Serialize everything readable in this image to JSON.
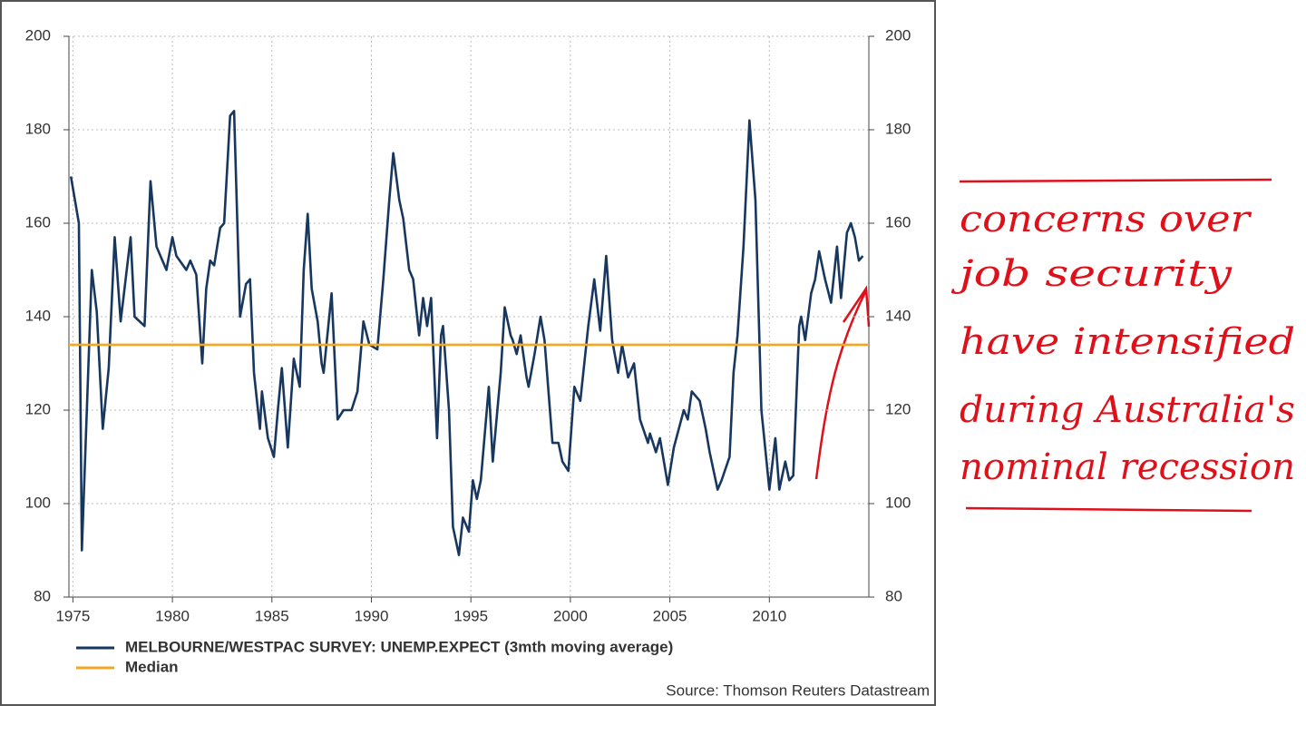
{
  "chart_data": {
    "type": "line",
    "x": [
      1974.9,
      1975.3,
      1975.45,
      1975.95,
      1976.2,
      1976.5,
      1976.8,
      1977.1,
      1977.4,
      1977.9,
      1978.1,
      1978.6,
      1978.9,
      1979.2,
      1979.7,
      1980.0,
      1980.2,
      1980.7,
      1980.9,
      1981.2,
      1981.5,
      1981.7,
      1981.9,
      1982.1,
      1982.4,
      1982.6,
      1982.9,
      1983.1,
      1983.4,
      1983.7,
      1983.9,
      1984.1,
      1984.4,
      1984.5,
      1984.8,
      1985.1,
      1985.3,
      1985.5,
      1985.8,
      1986.1,
      1986.4,
      1986.6,
      1986.8,
      1987.0,
      1987.3,
      1987.5,
      1987.6,
      1988.0,
      1988.3,
      1988.6,
      1989.0,
      1989.3,
      1989.6,
      1989.9,
      1990.3,
      1990.6,
      1990.9,
      1991.1,
      1991.4,
      1991.6,
      1991.9,
      1992.1,
      1992.4,
      1992.6,
      1992.8,
      1993.0,
      1993.3,
      1993.5,
      1993.6,
      1993.9,
      1994.1,
      1994.4,
      1994.6,
      1994.9,
      1995.1,
      1995.3,
      1995.5,
      1995.9,
      1996.1,
      1996.5,
      1996.7,
      1997.0,
      1997.1,
      1997.3,
      1997.5,
      1997.8,
      1997.9,
      1998.2,
      1998.5,
      1998.7,
      1999.1,
      1999.4,
      1999.6,
      1999.9,
      2000.2,
      2000.5,
      2000.9,
      2001.2,
      2001.5,
      2001.8,
      2002.1,
      2002.4,
      2002.6,
      2002.9,
      2003.2,
      2003.5,
      2003.9,
      2004.0,
      2004.3,
      2004.5,
      2004.9,
      2005.2,
      2005.7,
      2005.9,
      2006.1,
      2006.5,
      2006.8,
      2007.0,
      2007.4,
      2007.6,
      2008.0,
      2008.2,
      2008.4,
      2008.7,
      2009.0,
      2009.3,
      2009.6,
      2010.0,
      2010.3,
      2010.5,
      2010.8,
      2011.0,
      2011.2,
      2011.5,
      2011.6,
      2011.8,
      2012.1,
      2012.3,
      2012.5,
      2012.8,
      2013.1,
      2013.4,
      2013.6,
      2013.9,
      2014.1,
      2014.3,
      2014.5,
      2014.7
    ],
    "series": [
      {
        "name": "MELBOURNE/WESTPAC SURVEY: UNEMP.EXPECT (3mth moving average)",
        "color": "#17375e",
        "values": [
          170,
          160,
          90,
          150,
          141,
          116,
          129,
          157,
          139,
          157,
          140,
          138,
          169,
          155,
          150,
          157,
          153,
          150,
          152,
          149,
          130,
          146,
          152,
          151,
          159,
          160,
          183,
          184,
          140,
          147,
          148,
          128,
          116,
          124,
          114,
          110,
          120,
          129,
          112,
          131,
          125,
          150,
          162,
          146,
          139,
          130,
          128,
          145,
          118,
          120,
          120,
          124,
          139,
          134,
          133,
          148,
          165,
          175,
          165,
          161,
          150,
          148,
          136,
          144,
          138,
          144,
          114,
          136,
          138,
          120,
          95,
          89,
          97,
          94,
          105,
          101,
          105,
          125,
          109,
          128,
          142,
          136,
          135,
          132,
          136,
          127,
          125,
          132,
          140,
          135,
          113,
          113,
          109,
          107,
          125,
          122,
          138,
          148,
          137,
          153,
          135,
          128,
          134,
          127,
          130,
          118,
          113,
          115,
          111,
          114,
          104,
          112,
          120,
          118,
          124,
          122,
          116,
          111,
          103,
          105,
          110,
          128,
          136,
          155,
          182,
          165,
          120,
          103,
          114,
          103,
          109,
          105,
          106,
          138,
          140,
          135,
          145,
          148,
          154,
          148,
          143,
          155,
          144,
          158,
          160,
          157,
          152,
          153
        ]
      },
      {
        "name": "Median",
        "color": "#f5a623",
        "value": 134
      }
    ],
    "xlim": [
      1974.8,
      2015
    ],
    "xticks": [
      1975,
      1980,
      1985,
      1990,
      1995,
      2000,
      2005,
      2010
    ],
    "ylim": [
      80,
      200
    ],
    "yticks": [
      80,
      100,
      120,
      140,
      160,
      180,
      200
    ],
    "y2lim": [
      80,
      200
    ],
    "y2ticks": [
      80,
      100,
      120,
      140,
      160,
      180,
      200
    ],
    "grid": true,
    "source": "Source: Thomson Reuters Datastream",
    "annotation": [
      "concerns over",
      "job security",
      "have intensified",
      "during Australia's",
      "nominal recession"
    ]
  }
}
